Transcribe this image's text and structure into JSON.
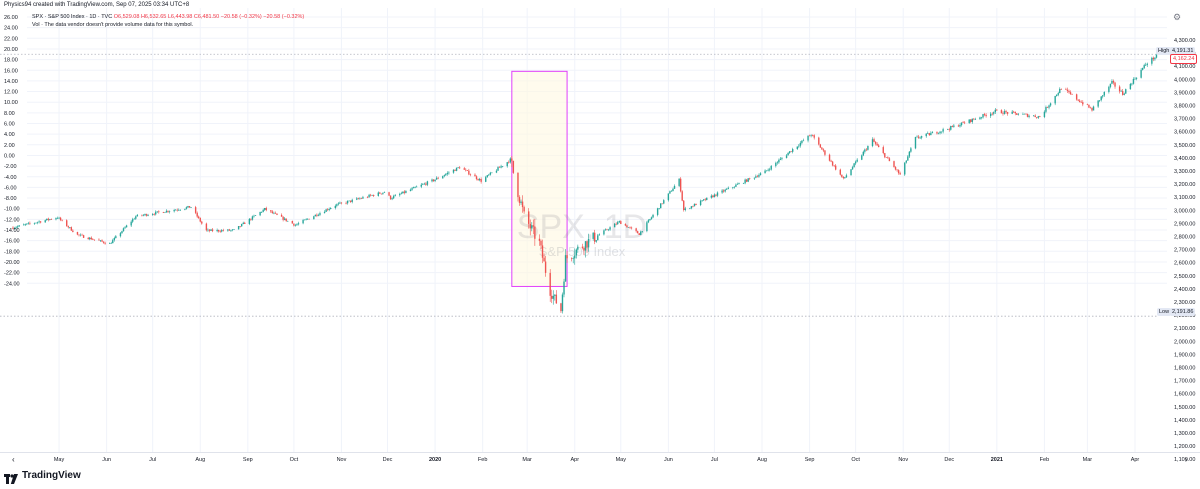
{
  "header": {
    "created_line": "Physics94 created with TradingView.com, Sep 07, 2025 03:34 UTC+8",
    "symbol_line": "SPX · S&P 500 Index · 1D · TVC",
    "ohlc": "O6,529.08 H6,532.65 L6,443.98 C6,481.50 −20.58 (−0.32%) −20.58 (−0.32%)",
    "volume_note": "Vol · The data vendor doesn't provide volume data for this symbol."
  },
  "watermark": {
    "symbol": "SPX, 1D",
    "name": "S&P 500 Index"
  },
  "price_tags": {
    "high_label": "High",
    "high_value": "4,191.31",
    "last_value": "4,162.24",
    "low_label": "Low",
    "low_value": "2,191.86"
  },
  "branding": {
    "name": "TradingView"
  },
  "nav": {
    "left": "‹",
    "right": "›"
  },
  "colors": {
    "up": "#26a69a",
    "down": "#ef5350",
    "box_border": "#e040fb",
    "box_fill": "#fff8e1",
    "grid": "#f0f3fa"
  },
  "chart_data": {
    "type": "candlestick",
    "left_axis_ticks": [
      "26.00",
      "24.00",
      "22.00",
      "20.00",
      "18.00",
      "16.00",
      "14.00",
      "12.00",
      "10.00",
      "8.00",
      "6.00",
      "4.00",
      "2.00",
      "0.00",
      "-2.00",
      "-4.00",
      "-6.00",
      "-8.00",
      "-10.00",
      "-12.00",
      "-14.00",
      "-16.00",
      "-18.00",
      "-20.00",
      "-22.00",
      "-24.00"
    ],
    "right_axis_ticks": [
      "4,300.00",
      "4,200.00",
      "4,100.00",
      "4,000.00",
      "3,900.00",
      "3,800.00",
      "3,700.00",
      "3,600.00",
      "3,500.00",
      "3,400.00",
      "3,300.00",
      "3,200.00",
      "3,100.00",
      "3,000.00",
      "2,900.00",
      "2,800.00",
      "2,700.00",
      "2,600.00",
      "2,500.00",
      "2,400.00",
      "2,300.00",
      "2,200.00",
      "2,100.00",
      "2,000.00",
      "1,900.00",
      "1,800.00",
      "1,700.00",
      "1,600.00",
      "1,500.00",
      "1,400.00",
      "1,300.00",
      "1,200.00",
      "1,100.00"
    ],
    "x_ticks": [
      {
        "label": "May",
        "date": "2019-05-01"
      },
      {
        "label": "Jun",
        "date": "2019-06-01"
      },
      {
        "label": "Jul",
        "date": "2019-07-01"
      },
      {
        "label": "Aug",
        "date": "2019-08-01"
      },
      {
        "label": "Sep",
        "date": "2019-09-01"
      },
      {
        "label": "Oct",
        "date": "2019-10-01"
      },
      {
        "label": "Nov",
        "date": "2019-11-01"
      },
      {
        "label": "Dec",
        "date": "2019-12-01"
      },
      {
        "label": "2020",
        "date": "2020-01-01"
      },
      {
        "label": "Feb",
        "date": "2020-02-01"
      },
      {
        "label": "Mar",
        "date": "2020-03-01"
      },
      {
        "label": "Apr",
        "date": "2020-04-01"
      },
      {
        "label": "May",
        "date": "2020-05-01"
      },
      {
        "label": "Jun",
        "date": "2020-06-01"
      },
      {
        "label": "Jul",
        "date": "2020-07-01"
      },
      {
        "label": "Aug",
        "date": "2020-08-01"
      },
      {
        "label": "Sep",
        "date": "2020-09-01"
      },
      {
        "label": "Oct",
        "date": "2020-10-01"
      },
      {
        "label": "Nov",
        "date": "2020-11-01"
      },
      {
        "label": "Dec",
        "date": "2020-12-01"
      },
      {
        "label": "2021",
        "date": "2021-01-01"
      },
      {
        "label": "Feb",
        "date": "2021-02-01"
      },
      {
        "label": "Mar",
        "date": "2021-03-01"
      },
      {
        "label": "Apr",
        "date": "2021-04-01"
      }
    ],
    "x_range": [
      "2019-04-01",
      "2021-04-16"
    ],
    "price_range": [
      1100,
      4300
    ],
    "pct_range": [
      -24,
      26
    ],
    "anchors": [
      [
        "2019-04-01",
        2868
      ],
      [
        "2019-04-30",
        2946
      ],
      [
        "2019-05-13",
        2812
      ],
      [
        "2019-06-03",
        2744
      ],
      [
        "2019-06-20",
        2954
      ],
      [
        "2019-07-26",
        3026
      ],
      [
        "2019-08-05",
        2844
      ],
      [
        "2019-08-23",
        2847
      ],
      [
        "2019-09-12",
        3009
      ],
      [
        "2019-10-02",
        2887
      ],
      [
        "2019-10-28",
        3039
      ],
      [
        "2019-11-29",
        3140
      ],
      [
        "2019-12-03",
        3093
      ],
      [
        "2019-12-31",
        3230
      ],
      [
        "2020-01-17",
        3329
      ],
      [
        "2020-01-31",
        3225
      ],
      [
        "2020-02-19",
        3386
      ],
      [
        "2020-02-28",
        2954
      ],
      [
        "2020-03-09",
        2746
      ],
      [
        "2020-03-16",
        2386
      ],
      [
        "2020-03-23",
        2237
      ],
      [
        "2020-03-26",
        2630
      ],
      [
        "2020-04-08",
        2749
      ],
      [
        "2020-04-30",
        2912
      ],
      [
        "2020-05-13",
        2820
      ],
      [
        "2020-06-08",
        3232
      ],
      [
        "2020-06-11",
        3002
      ],
      [
        "2020-07-01",
        3115
      ],
      [
        "2020-08-03",
        3294
      ],
      [
        "2020-09-02",
        3580
      ],
      [
        "2020-09-23",
        3237
      ],
      [
        "2020-10-12",
        3535
      ],
      [
        "2020-10-30",
        3270
      ],
      [
        "2020-11-09",
        3550
      ],
      [
        "2020-11-30",
        3622
      ],
      [
        "2020-12-31",
        3756
      ],
      [
        "2021-01-29",
        3714
      ],
      [
        "2021-02-12",
        3934
      ],
      [
        "2021-03-04",
        3768
      ],
      [
        "2021-03-17",
        3974
      ],
      [
        "2021-03-24",
        3889
      ],
      [
        "2021-04-09",
        4128
      ],
      [
        "2021-04-16",
        4185
      ]
    ],
    "high": 4191.31,
    "low": 2191.86,
    "highlight_box": {
      "from": "2020-02-20",
      "to": "2020-03-27",
      "top_pct": 15.8,
      "bottom_pct": -24.6
    },
    "grid": true,
    "watermark": true
  }
}
